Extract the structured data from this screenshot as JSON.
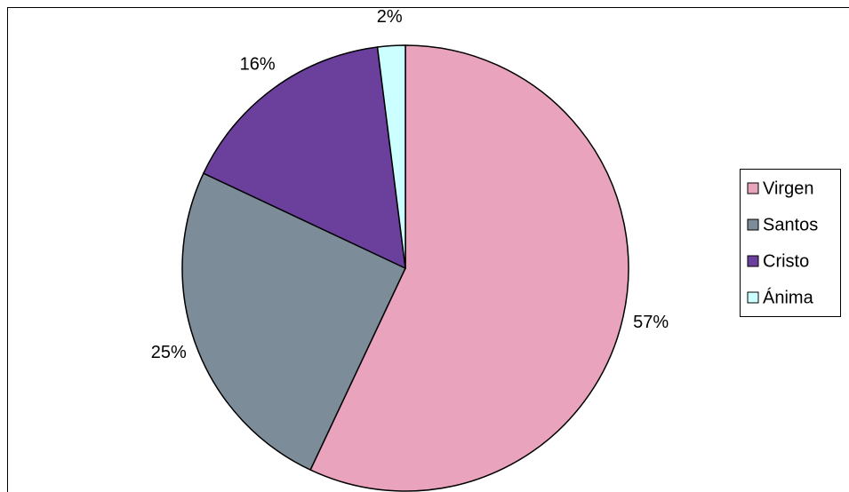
{
  "chart_data": {
    "type": "pie",
    "categories": [
      "Virgen",
      "Santos",
      "Cristo",
      "Ánima"
    ],
    "values": [
      57,
      25,
      16,
      2
    ],
    "value_labels": [
      "57%",
      "25%",
      "16%",
      "2%"
    ],
    "colors": [
      "#e9a3bd",
      "#7d8c99",
      "#6b3f9c",
      "#ccffff"
    ],
    "legend": "right"
  }
}
